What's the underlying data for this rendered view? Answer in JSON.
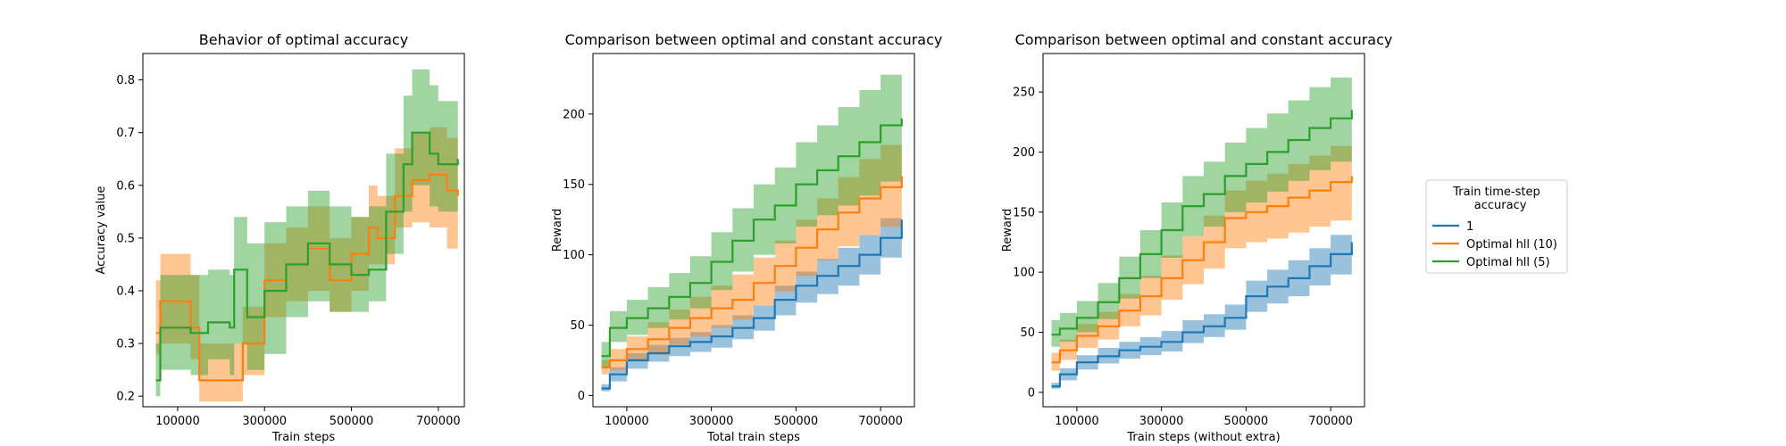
{
  "chart_data": [
    {
      "type": "line",
      "title": "Behavior of optimal accuracy",
      "xlabel": "Train steps",
      "ylabel": "Accuracy value",
      "xlim": [
        20000,
        760000
      ],
      "ylim": [
        0.18,
        0.85
      ],
      "xticks": [
        100000,
        300000,
        500000,
        700000
      ],
      "xtick_labels": [
        "100000",
        "300000",
        "500000",
        "700000"
      ],
      "yticks": [
        0.2,
        0.3,
        0.4,
        0.5,
        0.6,
        0.7,
        0.8
      ],
      "ytick_labels": [
        "0.2",
        "0.3",
        "0.4",
        "0.5",
        "0.6",
        "0.7",
        "0.8"
      ],
      "grid": false,
      "series": [
        {
          "color": "#ff7f0e",
          "x": [
            50000,
            60000,
            120000,
            130000,
            150000,
            210000,
            250000,
            300000,
            350000,
            400000,
            450000,
            500000,
            540000,
            560000,
            600000,
            640000,
            680000,
            720000,
            745000
          ],
          "y": [
            0.32,
            0.38,
            0.38,
            0.33,
            0.23,
            0.23,
            0.3,
            0.42,
            0.45,
            0.48,
            0.42,
            0.47,
            0.52,
            0.5,
            0.58,
            0.61,
            0.62,
            0.59,
            0.58
          ],
          "lower": [
            0.28,
            0.3,
            0.3,
            0.27,
            0.19,
            0.19,
            0.24,
            0.35,
            0.38,
            0.4,
            0.36,
            0.4,
            0.45,
            0.45,
            0.52,
            0.53,
            0.52,
            0.48,
            0.47
          ],
          "upper": [
            0.42,
            0.47,
            0.47,
            0.43,
            0.3,
            0.3,
            0.37,
            0.49,
            0.52,
            0.56,
            0.5,
            0.54,
            0.6,
            0.58,
            0.67,
            0.7,
            0.71,
            0.69,
            0.67
          ]
        },
        {
          "color": "#2ca02c",
          "x": [
            50000,
            60000,
            120000,
            130000,
            170000,
            220000,
            230000,
            260000,
            300000,
            350000,
            400000,
            450000,
            500000,
            540000,
            580000,
            620000,
            640000,
            680000,
            700000,
            745000
          ],
          "y": [
            0.23,
            0.33,
            0.33,
            0.32,
            0.34,
            0.33,
            0.44,
            0.35,
            0.4,
            0.45,
            0.49,
            0.45,
            0.43,
            0.44,
            0.55,
            0.64,
            0.7,
            0.66,
            0.64,
            0.65
          ],
          "lower": [
            0.2,
            0.25,
            0.25,
            0.24,
            0.27,
            0.24,
            0.3,
            0.25,
            0.28,
            0.35,
            0.38,
            0.36,
            0.36,
            0.38,
            0.47,
            0.55,
            0.6,
            0.56,
            0.55,
            0.56
          ],
          "upper": [
            0.3,
            0.43,
            0.43,
            0.43,
            0.44,
            0.43,
            0.54,
            0.49,
            0.53,
            0.56,
            0.59,
            0.56,
            0.54,
            0.56,
            0.66,
            0.77,
            0.82,
            0.79,
            0.76,
            0.76
          ]
        }
      ]
    },
    {
      "type": "line",
      "title": "Comparison between optimal and constant accuracy",
      "xlabel": "Total train steps",
      "ylabel": "Reward",
      "xlim": [
        20000,
        780000
      ],
      "ylim": [
        -8,
        243
      ],
      "xticks": [
        100000,
        300000,
        500000,
        700000
      ],
      "xtick_labels": [
        "100000",
        "300000",
        "500000",
        "700000"
      ],
      "yticks": [
        0,
        50,
        100,
        150,
        200
      ],
      "ytick_labels": [
        "0",
        "50",
        "100",
        "150",
        "200"
      ],
      "grid": false,
      "series": [
        {
          "name": "1",
          "color": "#1f77b4",
          "x": [
            40000,
            60000,
            100000,
            150000,
            200000,
            250000,
            300000,
            350000,
            400000,
            450000,
            500000,
            550000,
            600000,
            650000,
            700000,
            750000
          ],
          "y": [
            5,
            15,
            25,
            30,
            35,
            38,
            42,
            48,
            55,
            68,
            78,
            85,
            92,
            100,
            112,
            125
          ],
          "lower": [
            3,
            10,
            19,
            24,
            28,
            31,
            34,
            40,
            46,
            57,
            66,
            72,
            78,
            86,
            98,
            108
          ],
          "upper": [
            8,
            20,
            30,
            36,
            41,
            45,
            50,
            57,
            64,
            78,
            88,
            97,
            105,
            114,
            126,
            140
          ]
        },
        {
          "name": "Optimal hll (10)",
          "color": "#ff7f0e",
          "x": [
            40000,
            60000,
            100000,
            150000,
            200000,
            250000,
            300000,
            350000,
            400000,
            450000,
            500000,
            550000,
            600000,
            650000,
            700000,
            750000
          ],
          "y": [
            20,
            25,
            33,
            40,
            48,
            55,
            62,
            68,
            80,
            92,
            105,
            118,
            130,
            140,
            148,
            156
          ],
          "lower": [
            15,
            18,
            24,
            29,
            36,
            42,
            48,
            54,
            64,
            74,
            85,
            96,
            106,
            114,
            120,
            125
          ],
          "upper": [
            25,
            33,
            42,
            52,
            61,
            70,
            78,
            86,
            98,
            110,
            125,
            140,
            155,
            168,
            178,
            190
          ]
        },
        {
          "name": "Optimal hll (5)",
          "color": "#2ca02c",
          "x": [
            40000,
            60000,
            100000,
            150000,
            200000,
            250000,
            300000,
            350000,
            400000,
            450000,
            500000,
            550000,
            600000,
            650000,
            700000,
            750000
          ],
          "y": [
            28,
            48,
            55,
            62,
            70,
            80,
            95,
            110,
            125,
            135,
            150,
            160,
            170,
            180,
            192,
            197
          ],
          "lower": [
            20,
            38,
            43,
            48,
            54,
            62,
            75,
            88,
            100,
            108,
            120,
            128,
            135,
            142,
            152,
            155
          ],
          "upper": [
            38,
            60,
            68,
            77,
            87,
            99,
            116,
            133,
            150,
            162,
            180,
            192,
            205,
            217,
            228,
            230
          ]
        }
      ]
    },
    {
      "type": "line",
      "title": "Comparison between optimal and constant accuracy",
      "xlabel": "Train steps (without extra)",
      "ylabel": "Reward",
      "xlim": [
        20000,
        780000
      ],
      "ylim": [
        -12,
        282
      ],
      "xticks": [
        100000,
        300000,
        500000,
        700000
      ],
      "xtick_labels": [
        "100000",
        "300000",
        "500000",
        "700000"
      ],
      "yticks": [
        0,
        50,
        100,
        150,
        200,
        250
      ],
      "ytick_labels": [
        "0",
        "50",
        "100",
        "150",
        "200",
        "250"
      ],
      "grid": false,
      "series": [
        {
          "name": "1",
          "color": "#1f77b4",
          "x": [
            40000,
            60000,
            100000,
            150000,
            200000,
            250000,
            300000,
            350000,
            400000,
            450000,
            500000,
            550000,
            600000,
            650000,
            700000,
            750000
          ],
          "y": [
            5,
            15,
            25,
            30,
            35,
            38,
            42,
            50,
            55,
            62,
            80,
            88,
            95,
            105,
            115,
            125
          ],
          "lower": [
            3,
            10,
            19,
            24,
            28,
            31,
            34,
            41,
            46,
            52,
            67,
            74,
            80,
            89,
            98,
            106
          ],
          "upper": [
            8,
            20,
            31,
            37,
            42,
            46,
            51,
            60,
            65,
            73,
            93,
            102,
            110,
            120,
            131,
            140
          ]
        },
        {
          "name": "Optimal hll (10)",
          "color": "#ff7f0e",
          "x": [
            40000,
            60000,
            100000,
            150000,
            200000,
            250000,
            300000,
            350000,
            400000,
            450000,
            500000,
            550000,
            600000,
            650000,
            700000,
            750000
          ],
          "y": [
            25,
            35,
            47,
            55,
            68,
            80,
            95,
            110,
            125,
            145,
            150,
            155,
            162,
            168,
            175,
            180
          ],
          "lower": [
            18,
            27,
            37,
            44,
            55,
            64,
            77,
            90,
            103,
            120,
            125,
            128,
            133,
            138,
            143,
            146
          ],
          "upper": [
            33,
            44,
            57,
            67,
            82,
            97,
            114,
            130,
            147,
            168,
            176,
            182,
            190,
            197,
            205,
            212
          ]
        },
        {
          "name": "Optimal hll (5)",
          "color": "#2ca02c",
          "x": [
            40000,
            60000,
            100000,
            150000,
            200000,
            250000,
            300000,
            350000,
            400000,
            450000,
            500000,
            550000,
            600000,
            650000,
            700000,
            750000
          ],
          "y": [
            48,
            53,
            62,
            75,
            95,
            115,
            135,
            155,
            165,
            180,
            190,
            200,
            210,
            220,
            228,
            235
          ],
          "lower": [
            38,
            42,
            50,
            61,
            78,
            95,
            112,
            130,
            138,
            150,
            158,
            167,
            176,
            185,
            192,
            198
          ],
          "upper": [
            60,
            66,
            76,
            91,
            113,
            135,
            158,
            180,
            192,
            208,
            220,
            232,
            243,
            254,
            262,
            268
          ]
        }
      ]
    }
  ],
  "legend": {
    "title": "Train time-step\n  accuracy",
    "title_lines": [
      "Train time-step",
      "  accuracy"
    ],
    "placement": "right",
    "entries": [
      {
        "label": "1",
        "color": "#1f77b4"
      },
      {
        "label": "Optimal hll (10)",
        "color": "#ff7f0e"
      },
      {
        "label": "Optimal hll (5)",
        "color": "#2ca02c"
      }
    ]
  }
}
